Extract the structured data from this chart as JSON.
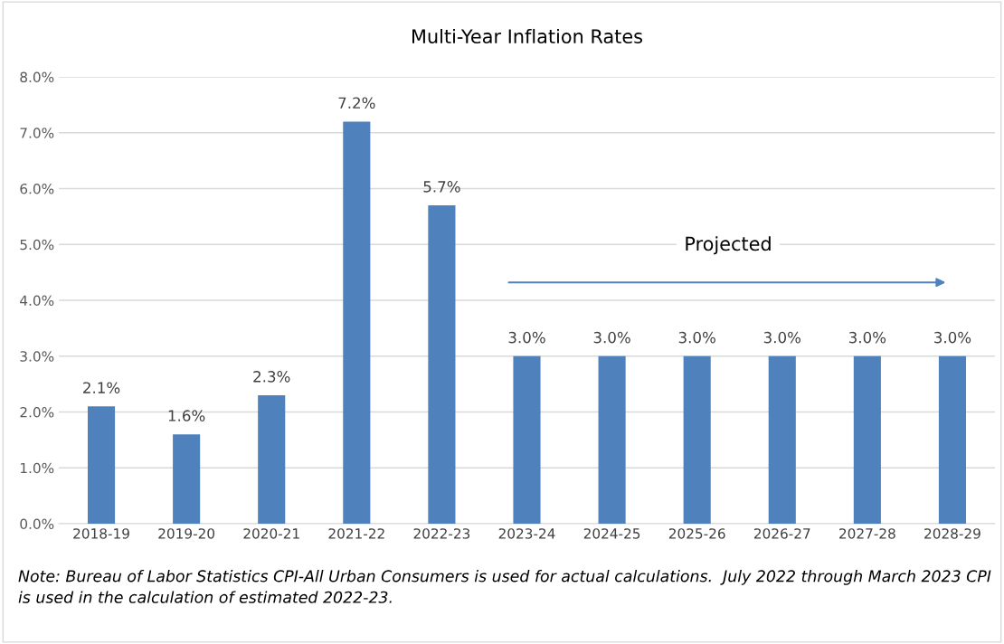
{
  "chart_data": {
    "type": "bar",
    "title": "Multi-Year Inflation Rates",
    "categories": [
      "2018-19",
      "2019-20",
      "2020-21",
      "2021-22",
      "2022-23",
      "2023-24",
      "2024-25",
      "2025-26",
      "2026-27",
      "2027-28",
      "2028-29"
    ],
    "values": [
      2.1,
      1.6,
      2.3,
      7.2,
      5.7,
      3.0,
      3.0,
      3.0,
      3.0,
      3.0,
      3.0
    ],
    "value_labels": [
      "2.1%",
      "1.6%",
      "2.3%",
      "7.2%",
      "5.7%",
      "3.0%",
      "3.0%",
      "3.0%",
      "3.0%",
      "3.0%",
      "3.0%"
    ],
    "color": "#4f81bd",
    "ylim": [
      0,
      8
    ],
    "yticks": [
      {
        "value": 0,
        "label": "0.0%"
      },
      {
        "value": 1,
        "label": "1.0%"
      },
      {
        "value": 2,
        "label": "2.0%"
      },
      {
        "value": 3,
        "label": "3.0%"
      },
      {
        "value": 4,
        "label": "4.0%"
      },
      {
        "value": 5,
        "label": "5.0%"
      },
      {
        "value": 6,
        "label": "6.0%"
      },
      {
        "value": 7,
        "label": "7.0%"
      },
      {
        "value": 8,
        "label": "8.0%"
      }
    ],
    "grid": "y",
    "legend": false,
    "annotations": [
      "Projected",
      "Note: Bureau of Labor Statistics CPI-All Urban Consumers is used for actual calculations.  July 2022 through March 2023 CPI is used in the calculation of estimated 2022-23."
    ]
  }
}
